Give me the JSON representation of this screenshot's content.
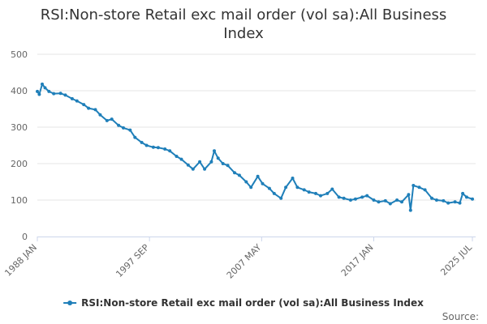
{
  "chart_data": {
    "type": "line",
    "title": "RSI:Non-store Retail exc mail order (vol sa):All Business Index",
    "xlabel": "",
    "ylabel": "",
    "ylim": [
      0,
      500
    ],
    "y_ticks": [
      0,
      100,
      200,
      300,
      400,
      500
    ],
    "x_tick_labels": [
      "1988 JAN",
      "1997 SEP",
      "2007 MAY",
      "2017 JAN",
      "2025 JUL"
    ],
    "x_range": [
      "1988-01",
      "2025-07"
    ],
    "grid": "horizontal",
    "legend_position": "bottom",
    "credit": "Source:",
    "line_color": "#1f7fb9",
    "grid_color": "#e6e6e6",
    "axis_color": "#ccd6eb",
    "series": [
      {
        "name": "RSI:Non-store Retail exc mail order (vol sa):All Business Index",
        "points": [
          [
            "1988-01",
            398
          ],
          [
            "1988-03",
            390
          ],
          [
            "1988-06",
            418
          ],
          [
            "1988-09",
            408
          ],
          [
            "1989-01",
            398
          ],
          [
            "1989-06",
            392
          ],
          [
            "1990-01",
            393
          ],
          [
            "1990-06",
            388
          ],
          [
            "1991-01",
            378
          ],
          [
            "1991-06",
            372
          ],
          [
            "1992-01",
            362
          ],
          [
            "1992-06",
            352
          ],
          [
            "1993-01",
            348
          ],
          [
            "1993-06",
            334
          ],
          [
            "1994-01",
            318
          ],
          [
            "1994-06",
            322
          ],
          [
            "1995-01",
            305
          ],
          [
            "1995-06",
            298
          ],
          [
            "1996-01",
            292
          ],
          [
            "1996-06",
            272
          ],
          [
            "1997-01",
            258
          ],
          [
            "1997-06",
            250
          ],
          [
            "1998-01",
            245
          ],
          [
            "1998-06",
            244
          ],
          [
            "1999-01",
            240
          ],
          [
            "1999-06",
            235
          ],
          [
            "2000-01",
            220
          ],
          [
            "2000-06",
            212
          ],
          [
            "2001-01",
            196
          ],
          [
            "2001-06",
            185
          ],
          [
            "2002-01",
            205
          ],
          [
            "2002-06",
            185
          ],
          [
            "2003-01",
            205
          ],
          [
            "2003-04",
            235
          ],
          [
            "2003-08",
            215
          ],
          [
            "2004-01",
            200
          ],
          [
            "2004-06",
            195
          ],
          [
            "2005-01",
            175
          ],
          [
            "2005-06",
            168
          ],
          [
            "2006-01",
            150
          ],
          [
            "2006-06",
            135
          ],
          [
            "2007-01",
            165
          ],
          [
            "2007-06",
            145
          ],
          [
            "2008-01",
            132
          ],
          [
            "2008-06",
            118
          ],
          [
            "2009-01",
            105
          ],
          [
            "2009-06",
            135
          ],
          [
            "2010-01",
            160
          ],
          [
            "2010-06",
            135
          ],
          [
            "2011-01",
            128
          ],
          [
            "2011-06",
            122
          ],
          [
            "2012-01",
            118
          ],
          [
            "2012-06",
            112
          ],
          [
            "2013-01",
            118
          ],
          [
            "2013-06",
            130
          ],
          [
            "2014-01",
            108
          ],
          [
            "2014-06",
            105
          ],
          [
            "2015-01",
            100
          ],
          [
            "2015-06",
            103
          ],
          [
            "2016-01",
            108
          ],
          [
            "2016-06",
            112
          ],
          [
            "2017-01",
            100
          ],
          [
            "2017-06",
            95
          ],
          [
            "2018-01",
            98
          ],
          [
            "2018-06",
            90
          ],
          [
            "2019-01",
            100
          ],
          [
            "2019-06",
            95
          ],
          [
            "2020-01",
            115
          ],
          [
            "2020-03",
            72
          ],
          [
            "2020-06",
            140
          ],
          [
            "2020-12",
            135
          ],
          [
            "2021-06",
            128
          ],
          [
            "2022-01",
            105
          ],
          [
            "2022-06",
            100
          ],
          [
            "2023-01",
            98
          ],
          [
            "2023-06",
            92
          ],
          [
            "2024-01",
            95
          ],
          [
            "2024-06",
            92
          ],
          [
            "2024-09",
            118
          ],
          [
            "2025-01",
            108
          ],
          [
            "2025-07",
            103
          ]
        ]
      }
    ]
  }
}
